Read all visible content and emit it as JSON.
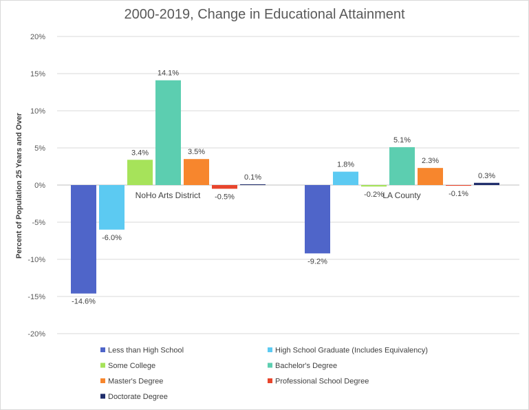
{
  "chart_data": {
    "type": "bar",
    "title": "2000-2019, Change in Educational Attainment",
    "ylabel": "Percent of Population 25 Years and Over",
    "xlabel": "",
    "ylim": [
      -20,
      20
    ],
    "yticks": [
      20,
      15,
      10,
      5,
      0,
      -5,
      -10,
      -15,
      -20
    ],
    "ytick_labels": [
      "20%",
      "15%",
      "10%",
      "5%",
      "0%",
      "-5%",
      "-10%",
      "-15%",
      "-20%"
    ],
    "grid": true,
    "legend_position": "bottom",
    "categories": [
      "NoHo Arts District",
      "LA County"
    ],
    "series": [
      {
        "name": "Less than High School",
        "color": "#4f65c9",
        "values": [
          -14.6,
          -9.2
        ],
        "labels": [
          "-14.6%",
          "-9.2%"
        ]
      },
      {
        "name": "High School Graduate (Includes Equivalency)",
        "color": "#5ccaf2",
        "values": [
          -6.0,
          1.8
        ],
        "labels": [
          "-6.0%",
          "1.8%"
        ]
      },
      {
        "name": "Some College",
        "color": "#a6e35a",
        "values": [
          3.4,
          -0.2
        ],
        "labels": [
          "3.4%",
          "-0.2%"
        ]
      },
      {
        "name": "Bachelor's Degree",
        "color": "#5cceb0",
        "values": [
          14.1,
          5.1
        ],
        "labels": [
          "14.1%",
          "5.1%"
        ]
      },
      {
        "name": "Master's Degree",
        "color": "#f7862d",
        "values": [
          3.5,
          2.3
        ],
        "labels": [
          "3.5%",
          "2.3%"
        ]
      },
      {
        "name": "Professional School Degree",
        "color": "#e8452c",
        "values": [
          -0.5,
          -0.1
        ],
        "labels": [
          "-0.5%",
          "-0.1%"
        ]
      },
      {
        "name": "Doctorate Degree",
        "color": "#1f2d6b",
        "values": [
          0.1,
          0.3
        ],
        "labels": [
          "0.1%",
          "0.3%"
        ]
      }
    ]
  }
}
